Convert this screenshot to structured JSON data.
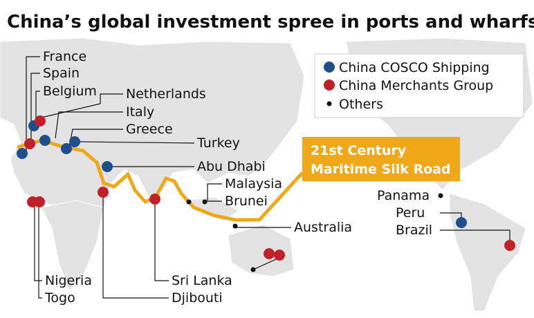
{
  "title": "China’s global investment spree in ports and wharfs",
  "legend": [
    "China COSCO Shipping",
    "China Merchants Group",
    "Others"
  ],
  "route_label": [
    "21st Century",
    "Maritime Silk Road"
  ],
  "places": [
    "France",
    "Spain",
    "Belgium",
    "Netherlands",
    "Italy",
    "Greece",
    "Turkey",
    "Abu Dhabi",
    "Malaysia",
    "Brunei",
    "Australia",
    "Panama",
    "Peru",
    "Brazil",
    "Nigeria",
    "Togo",
    "Sri Lanka",
    "Djibouti"
  ]
}
